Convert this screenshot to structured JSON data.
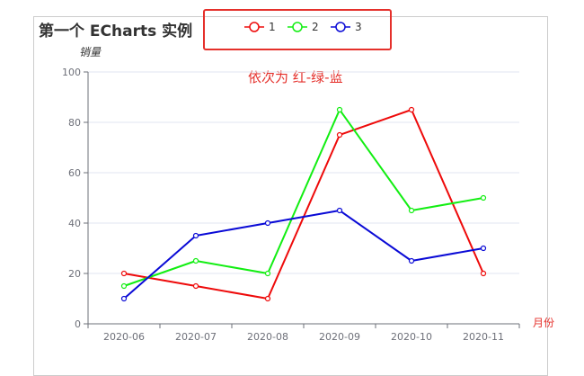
{
  "chart_data": {
    "type": "line",
    "title": "第一个 ECharts 实例",
    "annotation": "依次为 红-绿-蓝",
    "xlabel": "月份",
    "ylabel": "销量",
    "categories": [
      "2020-06",
      "2020-07",
      "2020-08",
      "2020-09",
      "2020-10",
      "2020-11"
    ],
    "ylim": [
      0,
      100
    ],
    "yticks": [
      0,
      20,
      40,
      60,
      80,
      100
    ],
    "grid": true,
    "legend_position": "top-center",
    "series": [
      {
        "name": "1",
        "color": "#ee0a0a",
        "values": [
          20,
          15,
          10,
          75,
          85,
          20
        ]
      },
      {
        "name": "2",
        "color": "#12ee12",
        "values": [
          15,
          25,
          20,
          85,
          45,
          50
        ]
      },
      {
        "name": "3",
        "color": "#0a0ad6",
        "values": [
          10,
          35,
          40,
          45,
          25,
          30
        ]
      }
    ]
  }
}
